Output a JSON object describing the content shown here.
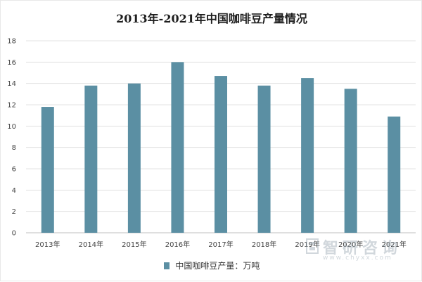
{
  "chart_data": {
    "type": "bar",
    "title": "2013年-2021年中国咖啡豆产量情况",
    "categories": [
      "2013年",
      "2014年",
      "2015年",
      "2016年",
      "2017年",
      "2018年",
      "2019年",
      "2020年",
      "2021年"
    ],
    "series": [
      {
        "name": "中国咖啡豆产量：万吨",
        "values": [
          11.8,
          13.8,
          14.0,
          16.0,
          14.7,
          13.8,
          14.5,
          13.5,
          10.9
        ]
      }
    ],
    "xlabel": "",
    "ylabel": "",
    "ylim": [
      0,
      18
    ],
    "yticks": [
      0,
      2,
      4,
      6,
      8,
      10,
      12,
      14,
      16,
      18
    ],
    "grid": true,
    "legend_position": "bottom",
    "bar_color": "#5b8fa3"
  },
  "watermark": {
    "text": "智研咨询",
    "url": "www.chyxx.com"
  }
}
